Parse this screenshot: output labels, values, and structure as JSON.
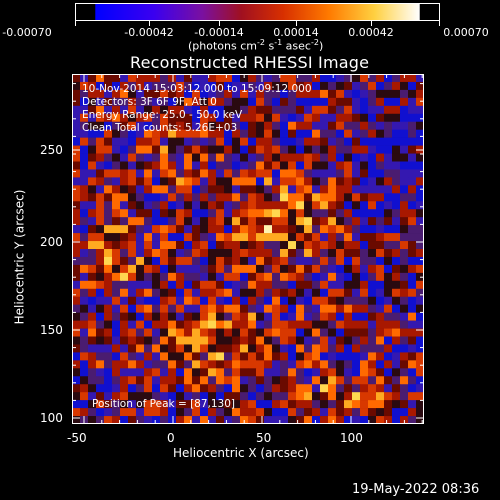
{
  "colorbar": {
    "tick_labels": [
      "-0.00070",
      "-0.00042",
      "-0.00014",
      "0.00014",
      "0.00042",
      "0.00070"
    ],
    "units_text": "(photons cm",
    "units_exp1": "-2",
    "units_mid": " s",
    "units_exp2": "-1",
    "units_mid2": " asec",
    "units_exp3": "-2",
    "units_end": ")",
    "colors": [
      "#0000ff",
      "#5a00d8",
      "#8a1070",
      "#b81a1a",
      "#e85000",
      "#ff9900",
      "#ffee66",
      "#ffffff"
    ]
  },
  "title": "Reconstructed RHESSI Image",
  "overlay": {
    "line1": "10-Nov-2014 15:03:12.000 to 15:09:12.000",
    "line2": "Detectors: 3F 6F 9F, Att 0",
    "line3": "Energy Range: 25.0 - 50.0 keV",
    "line4": "Clean     Total counts: 5.26E+03",
    "peak": "Position of Peak = [87,130]"
  },
  "axes": {
    "xlabel": "Heliocentric X (arcsec)",
    "ylabel": "Heliocentric Y (arcsec)",
    "xticks": [
      "-50",
      "0",
      "50",
      "100"
    ],
    "yticks": [
      "100",
      "150",
      "200",
      "250"
    ]
  },
  "footer": {
    "timestamp": "19-May-2022 08:36"
  }
}
